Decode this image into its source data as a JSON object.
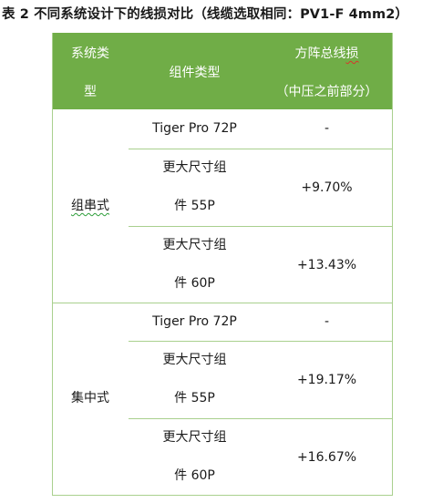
{
  "caption": "表 2 不同系统设计下的线损对比（线缆选取相同：PV1-F 4mm2）",
  "header": {
    "col1_line1": "系统类",
    "col1_line2": "型",
    "col2": "组件类型",
    "col3_line1_pre": "方阵总线",
    "col3_line1_mark": "损",
    "col3_line2": "（中压之前部分）"
  },
  "groups": [
    {
      "system": "组串式",
      "rows": [
        {
          "module_line1": "Tiger Pro 72P",
          "module_line2": "",
          "loss": "-"
        },
        {
          "module_line1": "更大尺寸组",
          "module_line2": "件 55P",
          "loss": "+9.70%"
        },
        {
          "module_line1": "更大尺寸组",
          "module_line2": "件 60P",
          "loss": "+13.43%"
        }
      ]
    },
    {
      "system": "集中式",
      "rows": [
        {
          "module_line1": "Tiger Pro 72P",
          "module_line2": "",
          "loss": "-"
        },
        {
          "module_line1": "更大尺寸组",
          "module_line2": "件 55P",
          "loss": "+19.17%"
        },
        {
          "module_line1": "更大尺寸组",
          "module_line2": "件 60P",
          "loss": "+16.67%"
        }
      ]
    }
  ],
  "colors": {
    "header_bg": "#70ad47",
    "border": "#a9d08e"
  }
}
